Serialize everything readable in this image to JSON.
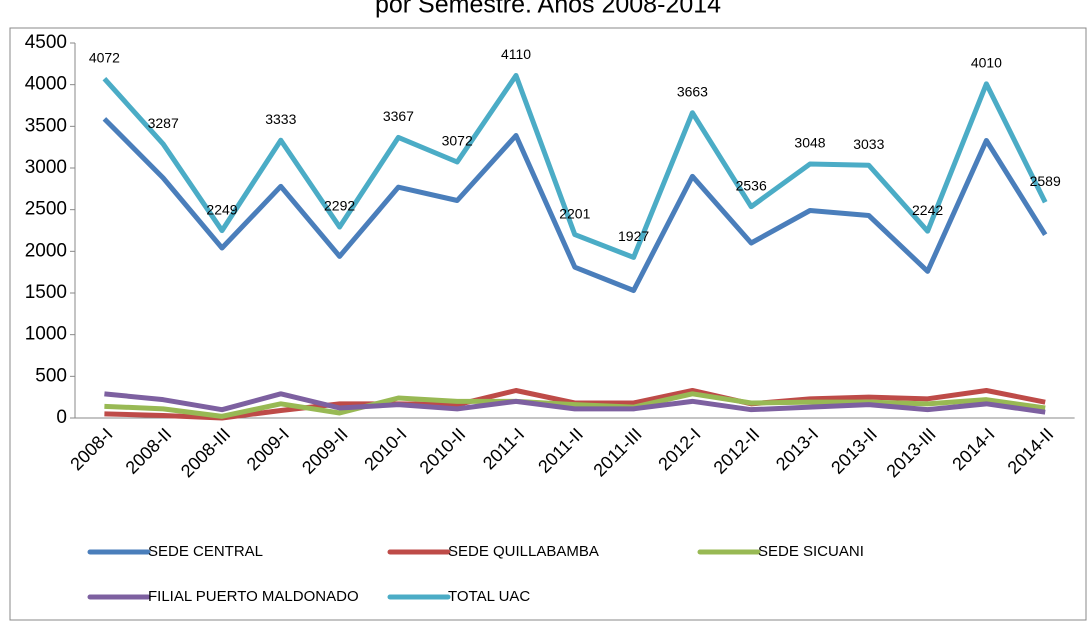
{
  "chart_data": {
    "type": "line",
    "title": "por Semestre. Años 2008-2014",
    "categories": [
      "2008-I",
      "2008-II",
      "2008-III",
      "2009-I",
      "2009-II",
      "2010-I",
      "2010-II",
      "2011-I",
      "2011-II",
      "2011-III",
      "2012-I",
      "2012-II",
      "2013-I",
      "2013-II",
      "2013-III",
      "2014-I",
      "2014-II"
    ],
    "series": [
      {
        "name": "SEDE CENTRAL",
        "color": "#4a7ebb",
        "values": [
          3590,
          2880,
          2040,
          2780,
          1940,
          2770,
          2610,
          3390,
          1810,
          1530,
          2900,
          2100,
          2490,
          2430,
          1760,
          3330,
          2200
        ]
      },
      {
        "name": "SEDE QUILLABAMBA",
        "color": "#be4b48",
        "values": [
          50,
          30,
          0,
          90,
          170,
          170,
          160,
          330,
          180,
          180,
          330,
          170,
          230,
          250,
          230,
          330,
          190
        ]
      },
      {
        "name": "SEDE SICUANI",
        "color": "#98b954",
        "values": [
          140,
          110,
          20,
          170,
          60,
          240,
          200,
          200,
          160,
          130,
          290,
          180,
          190,
          190,
          170,
          220,
          120
        ]
      },
      {
        "name": "FILIAL PUERTO MALDONADO",
        "color": "#7d60a0",
        "values": [
          290,
          220,
          100,
          290,
          120,
          160,
          110,
          200,
          110,
          110,
          200,
          100,
          130,
          160,
          100,
          170,
          70
        ]
      },
      {
        "name": "TOTAL UAC",
        "color": "#4bacc6",
        "values": [
          4072,
          3287,
          2249,
          3333,
          2292,
          3367,
          3072,
          4110,
          2201,
          1927,
          3663,
          2536,
          3048,
          3033,
          2242,
          4010,
          2589
        ],
        "data_labels": true
      }
    ],
    "ylim": [
      0,
      4500
    ],
    "yticks": [
      0,
      500,
      1000,
      1500,
      2000,
      2500,
      3000,
      3500,
      4000,
      4500
    ],
    "legend": "bottom"
  }
}
